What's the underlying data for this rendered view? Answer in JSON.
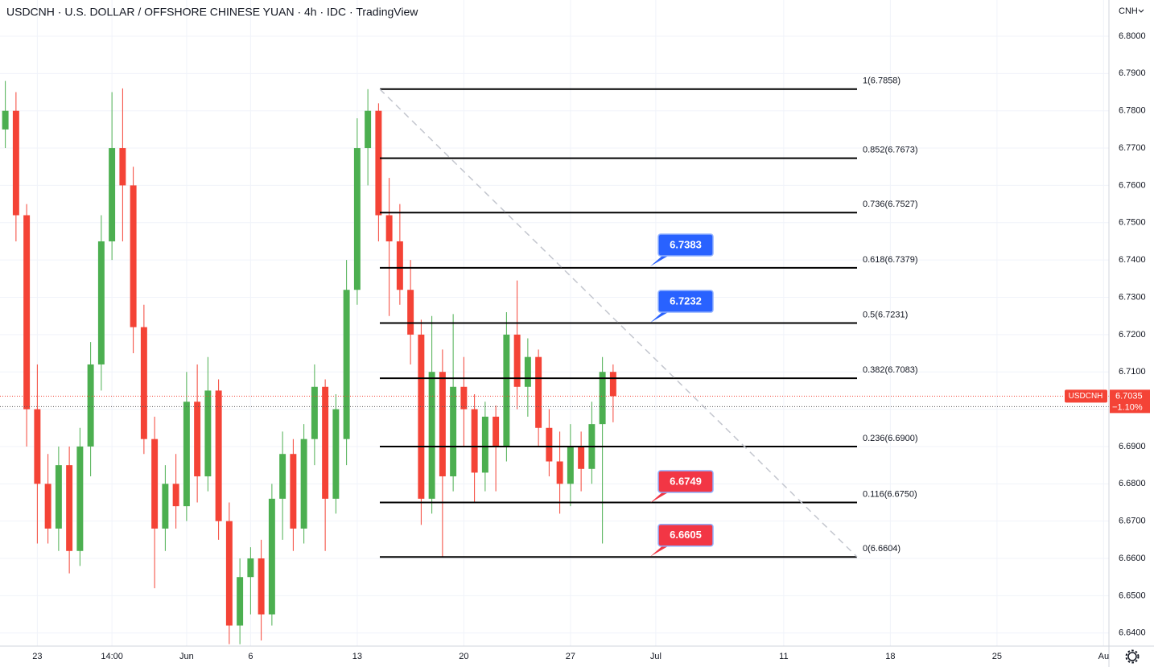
{
  "chart_data": {
    "type": "candlestick",
    "title": "USDCNH · U.S. DOLLAR / OFFSHORE CHINESE YUAN · 4h · IDC · TradingView",
    "currency": "CNH",
    "symbol": "USDCNH",
    "last_price": 6.7035,
    "change": {
      "value": -1.1,
      "label": "−1.10%"
    },
    "up_color": "#4caf50",
    "down_color": "#f44336",
    "grid": true,
    "categories": [
      null,
      null,
      null,
      "23",
      null,
      null,
      null,
      null,
      null,
      null,
      "14:00",
      null,
      null,
      null,
      null,
      null,
      null,
      "Jun",
      null,
      null,
      null,
      null,
      null,
      "6",
      null,
      null,
      null,
      null,
      null,
      null,
      null,
      null,
      null,
      "13",
      null,
      null,
      null,
      null,
      null,
      null,
      null,
      null,
      null,
      "20",
      null,
      null,
      null,
      null,
      null,
      null,
      null,
      null,
      null,
      "27",
      null,
      null,
      null,
      null,
      null,
      null,
      null,
      "Jul",
      null,
      null,
      null,
      null,
      null,
      null,
      null,
      null,
      null,
      null,
      null,
      "11",
      null,
      null,
      null,
      null,
      null,
      null,
      null,
      null,
      null,
      "18",
      null,
      null,
      null,
      null,
      null,
      null,
      null,
      null,
      null,
      "25",
      null,
      null,
      null,
      null,
      null,
      null,
      null,
      null,
      null,
      "Au"
    ],
    "open": [
      6.775,
      6.78,
      6.752,
      6.7,
      6.68,
      6.668,
      6.685,
      6.662,
      6.69,
      6.712,
      6.745,
      6.77,
      6.76,
      6.722,
      6.692,
      6.668,
      6.68,
      6.674,
      6.702,
      6.682,
      6.705,
      6.67,
      6.642,
      6.655,
      6.66,
      6.645,
      6.676,
      6.688,
      6.668,
      6.692,
      6.706,
      6.676,
      6.692,
      6.732,
      6.77,
      6.78,
      6.752,
      6.745,
      6.732,
      6.72,
      6.676,
      6.71,
      6.682,
      6.706,
      6.7,
      6.683,
      6.698,
      6.69,
      6.72,
      6.706,
      6.714,
      6.695,
      6.686,
      6.68,
      6.69,
      6.684,
      6.696,
      6.71,
      null,
      null,
      null,
      null,
      null,
      null,
      null,
      null,
      null,
      null,
      null,
      null,
      null,
      null,
      null,
      null,
      null,
      null,
      null,
      null,
      null,
      null,
      null,
      null,
      null,
      null,
      null,
      null,
      null,
      null,
      null,
      null,
      null,
      null,
      null,
      null,
      null,
      null,
      null,
      null,
      null,
      null,
      null,
      null,
      null,
      null
    ],
    "high": [
      6.788,
      6.785,
      6.755,
      6.712,
      6.688,
      6.69,
      6.69,
      6.695,
      6.718,
      6.752,
      6.785,
      6.786,
      6.765,
      6.728,
      6.698,
      6.685,
      6.688,
      6.71,
      6.712,
      6.714,
      6.708,
      6.675,
      6.66,
      6.663,
      6.665,
      6.68,
      6.694,
      6.692,
      6.696,
      6.712,
      6.708,
      6.704,
      6.74,
      6.778,
      6.7858,
      6.782,
      6.762,
      6.755,
      6.74,
      6.724,
      6.725,
      6.716,
      6.7255,
      6.714,
      6.704,
      6.702,
      6.701,
      6.726,
      6.7345,
      6.719,
      6.716,
      6.7,
      6.694,
      6.696,
      6.694,
      6.702,
      6.714,
      6.712,
      null,
      null,
      null,
      null,
      null,
      null,
      null,
      null,
      null,
      null,
      null,
      null,
      null,
      null,
      null,
      null,
      null,
      null,
      null,
      null,
      null,
      null,
      null,
      null,
      null,
      null,
      null,
      null,
      null,
      null,
      null,
      null,
      null,
      null,
      null,
      null,
      null,
      null,
      null,
      null,
      null,
      null,
      null,
      null,
      null,
      null
    ],
    "low": [
      6.77,
      6.745,
      6.69,
      6.664,
      6.664,
      6.662,
      6.656,
      6.658,
      6.682,
      6.705,
      6.74,
      6.745,
      6.715,
      6.688,
      6.652,
      6.662,
      6.668,
      6.67,
      6.675,
      6.678,
      6.665,
      6.637,
      6.637,
      6.645,
      6.638,
      6.642,
      6.665,
      6.662,
      6.664,
      6.685,
      6.662,
      6.672,
      6.685,
      6.728,
      6.76,
      6.745,
      6.725,
      6.728,
      6.712,
      6.669,
      6.672,
      6.6604,
      6.678,
      6.69,
      6.675,
      6.678,
      6.678,
      6.686,
      6.7,
      6.698,
      6.69,
      6.682,
      6.672,
      6.674,
      6.678,
      6.68,
      6.664,
      6.6965,
      null,
      null,
      null,
      null,
      null,
      null,
      null,
      null,
      null,
      null,
      null,
      null,
      null,
      null,
      null,
      null,
      null,
      null,
      null,
      null,
      null,
      null,
      null,
      null,
      null,
      null,
      null,
      null,
      null,
      null,
      null,
      null,
      null,
      null,
      null,
      null,
      null,
      null,
      null,
      null,
      null,
      null,
      null,
      null,
      null,
      null
    ],
    "close": [
      6.78,
      6.752,
      6.7,
      6.68,
      6.668,
      6.685,
      6.662,
      6.69,
      6.712,
      6.745,
      6.77,
      6.76,
      6.722,
      6.692,
      6.668,
      6.68,
      6.674,
      6.702,
      6.682,
      6.705,
      6.67,
      6.642,
      6.655,
      6.66,
      6.645,
      6.676,
      6.688,
      6.668,
      6.692,
      6.706,
      6.676,
      6.7,
      6.732,
      6.77,
      6.78,
      6.752,
      6.745,
      6.732,
      6.72,
      6.676,
      6.71,
      6.682,
      6.706,
      6.7,
      6.683,
      6.698,
      6.69,
      6.72,
      6.706,
      6.714,
      6.695,
      6.686,
      6.68,
      6.69,
      6.684,
      6.696,
      6.71,
      6.7035,
      null,
      null,
      null,
      null,
      null,
      null,
      null,
      null,
      null,
      null,
      null,
      null,
      null,
      null,
      null,
      null,
      null,
      null,
      null,
      null,
      null,
      null,
      null,
      null,
      null,
      null,
      null,
      null,
      null,
      null,
      null,
      null,
      null,
      null,
      null,
      null,
      null,
      null,
      null,
      null,
      null,
      null,
      null,
      null,
      null,
      null
    ],
    "ylim": [
      6.6365,
      6.8097
    ],
    "yticks": [
      {
        "value": 6.64,
        "label": "6.6400"
      },
      {
        "value": 6.65,
        "label": "6.6500"
      },
      {
        "value": 6.66,
        "label": "6.6600"
      },
      {
        "value": 6.67,
        "label": "6.6700"
      },
      {
        "value": 6.68,
        "label": "6.6800"
      },
      {
        "value": 6.69,
        "label": "6.6900"
      },
      {
        "value": 6.7,
        "label": "6.7000"
      },
      {
        "value": 6.71,
        "label": "6.7100"
      },
      {
        "value": 6.72,
        "label": "6.7200"
      },
      {
        "value": 6.73,
        "label": "6.7300"
      },
      {
        "value": 6.74,
        "label": "6.7400"
      },
      {
        "value": 6.75,
        "label": "6.7500"
      },
      {
        "value": 6.76,
        "label": "6.7600"
      },
      {
        "value": 6.77,
        "label": "6.7700"
      },
      {
        "value": 6.78,
        "label": "6.7800"
      },
      {
        "value": 6.79,
        "label": "6.7900"
      },
      {
        "value": 6.8,
        "label": "6.8000"
      }
    ],
    "fib_levels": [
      {
        "price": 6.7858,
        "label": "1(6.7858)"
      },
      {
        "price": 6.7673,
        "label": "0.852(6.7673)"
      },
      {
        "price": 6.7527,
        "label": "0.736(6.7527)"
      },
      {
        "price": 6.7379,
        "label": "0.618(6.7379)"
      },
      {
        "price": 6.7231,
        "label": "0.5(6.7231)"
      },
      {
        "price": 6.7083,
        "label": "0.382(6.7083)"
      },
      {
        "price": 6.69,
        "label": "0.236(6.6900)"
      },
      {
        "price": 6.675,
        "label": "0.116(6.6750)"
      },
      {
        "price": 6.6604,
        "label": "0(6.6604)"
      }
    ],
    "callouts": [
      {
        "value": 6.7383,
        "color": "#2962ff"
      },
      {
        "value": 6.7232,
        "color": "#2962ff"
      },
      {
        "value": 6.6749,
        "color": "#f23645"
      },
      {
        "value": 6.6605,
        "color": "#f23645"
      }
    ]
  }
}
